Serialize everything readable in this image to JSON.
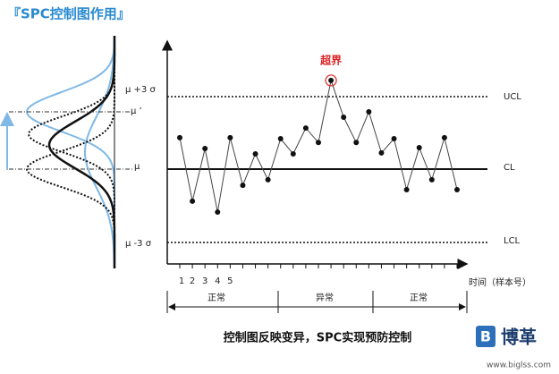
{
  "header": {
    "title": "『SPC控制图作用』"
  },
  "left_labels": {
    "upper": "μ +3 σ",
    "shifted_mean": "μ ’",
    "mean": "μ",
    "lower": "μ -3 σ"
  },
  "limits": {
    "ucl": "UCL",
    "cl": "CL",
    "lcl": "LCL"
  },
  "samples": [
    1.3,
    -1.33,
    0.85,
    -1.78,
    1.3,
    -0.67,
    0.63,
    -0.44,
    1.26,
    0.63,
    1.7,
    1.1,
    3.67,
    2.15,
    1.1,
    2.37,
    0.67,
    1.26,
    -0.85,
    0.89,
    -0.44,
    1.3,
    -0.85
  ],
  "out_of_limit": {
    "label": "超界",
    "index": 12
  },
  "x_labels": [
    "1",
    "2",
    "3",
    "4",
    "5"
  ],
  "x_axis_label": "时间（样本号）",
  "phases": [
    "正常",
    "异常",
    "正常"
  ],
  "caption": "控制图反映变异，SPC实现预防控制",
  "logo": {
    "name": "博革",
    "url": "www.biglss.com"
  }
}
